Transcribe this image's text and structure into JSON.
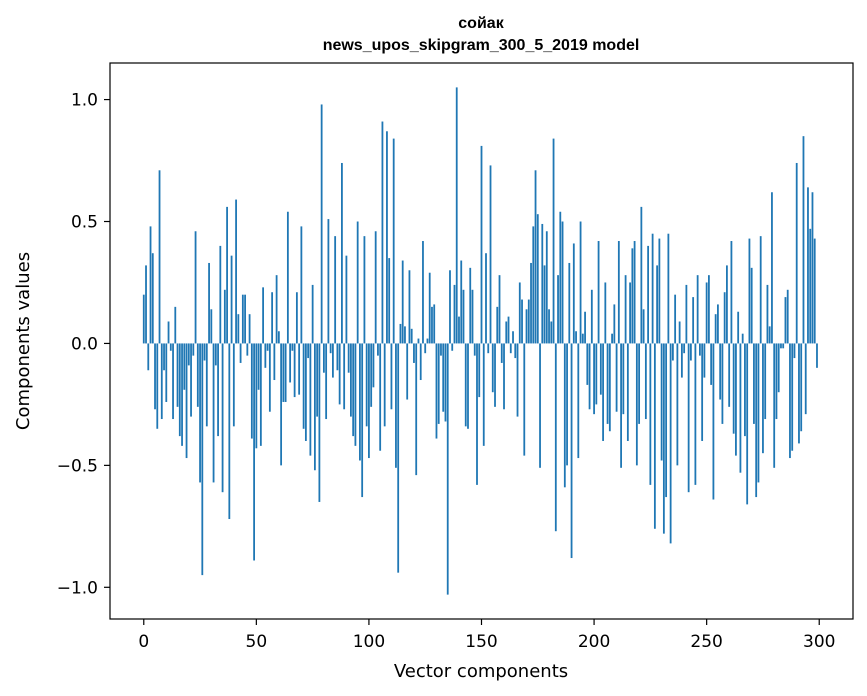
{
  "chart_data": {
    "type": "bar",
    "title": "сойак",
    "subtitle": "news_upos_skipgram_300_5_2019 model",
    "xlabel": "Vector components",
    "ylabel": "Components values",
    "xlim": [
      -15,
      315
    ],
    "ylim": [
      -1.13,
      1.15
    ],
    "xticks": [
      0,
      50,
      100,
      150,
      200,
      250,
      300
    ],
    "xtick_labels": [
      "0",
      "50",
      "100",
      "150",
      "200",
      "250",
      "300"
    ],
    "yticks": [
      -1.0,
      -0.5,
      0.0,
      0.5,
      1.0
    ],
    "ytick_labels": [
      "−1.0",
      "−0.5",
      "0.0",
      "0.5",
      "1.0"
    ],
    "bar_color": "#1f77b4",
    "values": [
      0.2,
      0.32,
      -0.11,
      0.48,
      0.37,
      -0.27,
      -0.35,
      0.71,
      -0.31,
      -0.11,
      -0.24,
      0.09,
      -0.03,
      -0.31,
      0.15,
      -0.26,
      -0.38,
      -0.42,
      -0.19,
      -0.47,
      -0.09,
      -0.3,
      -0.05,
      0.46,
      -0.26,
      -0.57,
      -0.95,
      -0.07,
      -0.34,
      0.33,
      0.14,
      -0.57,
      -0.09,
      -0.38,
      0.4,
      -0.61,
      0.22,
      0.56,
      -0.72,
      0.36,
      -0.34,
      0.59,
      0.12,
      -0.08,
      0.2,
      0.2,
      -0.05,
      0.12,
      -0.39,
      -0.89,
      -0.43,
      -0.19,
      -0.42,
      0.23,
      -0.1,
      -0.03,
      -0.28,
      0.21,
      -0.15,
      0.28,
      0.05,
      -0.5,
      -0.24,
      -0.24,
      0.54,
      -0.16,
      -0.03,
      -0.22,
      0.21,
      -0.21,
      0.48,
      -0.35,
      -0.4,
      -0.06,
      -0.46,
      0.24,
      -0.52,
      -0.3,
      -0.65,
      0.98,
      -0.12,
      -0.31,
      0.51,
      -0.04,
      -0.14,
      0.44,
      -0.11,
      -0.25,
      0.74,
      -0.27,
      0.36,
      -0.12,
      -0.3,
      -0.38,
      -0.42,
      0.5,
      -0.48,
      -0.63,
      0.44,
      -0.34,
      -0.47,
      -0.26,
      -0.18,
      0.46,
      -0.05,
      -0.44,
      0.91,
      -0.34,
      0.87,
      0.35,
      -0.27,
      0.84,
      -0.51,
      -0.94,
      0.08,
      0.34,
      0.07,
      -0.23,
      0.3,
      0.06,
      -0.08,
      -0.54,
      0.02,
      -0.15,
      0.42,
      -0.04,
      0.02,
      0.29,
      0.15,
      0.16,
      -0.39,
      -0.33,
      -0.05,
      -0.28,
      -0.32,
      -1.03,
      0.3,
      -0.03,
      0.24,
      1.05,
      0.11,
      0.34,
      0.22,
      -0.34,
      -0.35,
      0.31,
      0.22,
      -0.05,
      -0.58,
      -0.22,
      0.81,
      -0.42,
      0.37,
      -0.04,
      0.73,
      -0.2,
      -0.26,
      0.15,
      0.28,
      -0.08,
      -0.27,
      0.09,
      0.11,
      -0.04,
      0.05,
      -0.06,
      -0.3,
      0.25,
      0.18,
      -0.46,
      0.14,
      0.18,
      0.33,
      0.48,
      0.71,
      0.53,
      -0.51,
      0.49,
      0.32,
      0.46,
      0.14,
      0.09,
      0.84,
      -0.77,
      0.28,
      0.54,
      0.5,
      -0.59,
      -0.5,
      0.33,
      -0.88,
      0.41,
      0.05,
      -0.47,
      0.5,
      0.04,
      0.13,
      -0.17,
      -0.27,
      0.22,
      -0.29,
      -0.25,
      0.42,
      -0.21,
      -0.4,
      0.25,
      -0.33,
      -0.36,
      0.04,
      0.16,
      -0.28,
      0.42,
      -0.51,
      -0.29,
      0.28,
      -0.4,
      0.25,
      0.39,
      0.42,
      -0.5,
      -0.33,
      0.56,
      0.14,
      -0.31,
      0.4,
      -0.58,
      0.45,
      -0.76,
      0.32,
      0.43,
      -0.48,
      -0.78,
      -0.63,
      0.45,
      -0.82,
      -0.07,
      0.2,
      -0.5,
      0.09,
      -0.14,
      -0.04,
      0.24,
      -0.61,
      -0.07,
      0.19,
      -0.58,
      0.28,
      -0.05,
      -0.4,
      -0.14,
      0.25,
      0.28,
      -0.17,
      -0.64,
      0.12,
      0.16,
      -0.23,
      -0.33,
      0.21,
      0.32,
      -0.26,
      0.42,
      -0.37,
      -0.46,
      0.13,
      -0.53,
      0.04,
      -0.38,
      -0.66,
      0.43,
      0.31,
      -0.33,
      -0.63,
      -0.57,
      0.44,
      -0.45,
      -0.31,
      0.24,
      0.07,
      0.62,
      -0.51,
      -0.31,
      -0.2,
      -0.02,
      -0.02,
      0.19,
      0.22,
      -0.47,
      -0.44,
      -0.06,
      0.74,
      -0.41,
      -0.36,
      0.85,
      -0.29,
      0.64,
      0.47,
      0.62,
      0.43,
      -0.1
    ]
  }
}
